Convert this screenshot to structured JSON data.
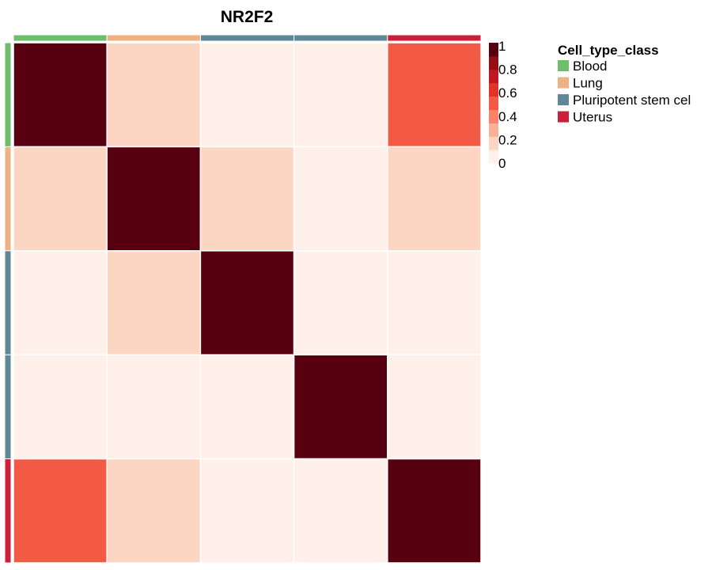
{
  "chart_data": {
    "type": "heatmap",
    "title": "NR2F2",
    "matrix": [
      [
        1.0,
        0.15,
        0.04,
        0.04,
        0.45
      ],
      [
        0.15,
        1.0,
        0.15,
        0.04,
        0.15
      ],
      [
        0.04,
        0.15,
        1.0,
        0.04,
        0.04
      ],
      [
        0.04,
        0.04,
        0.04,
        1.0,
        0.04
      ],
      [
        0.45,
        0.15,
        0.04,
        0.04,
        1.0
      ]
    ],
    "annotation_groups": [
      "Blood",
      "Lung",
      "Pluripotent stem cel",
      "Pluripotent stem cel",
      "Uterus"
    ],
    "legend": {
      "title": "Cell_type_class",
      "items": [
        {
          "label": "Blood",
          "color": "#6dbd6d"
        },
        {
          "label": "Lung",
          "color": "#efb084"
        },
        {
          "label": "Pluripotent stem cel",
          "color": "#5f8797"
        },
        {
          "label": "Uterus",
          "color": "#cb1f3c"
        }
      ]
    },
    "color_scale": {
      "min": 0,
      "max": 1,
      "ticks": [
        "1",
        "0.8",
        "0.6",
        "0.4",
        "0.2",
        "0"
      ],
      "colors": [
        "#fff0ea",
        "#fcd6c3",
        "#fbb096",
        "#f98267",
        "#f35a45",
        "#e23229",
        "#c01821",
        "#930c16",
        "#570010"
      ]
    }
  }
}
